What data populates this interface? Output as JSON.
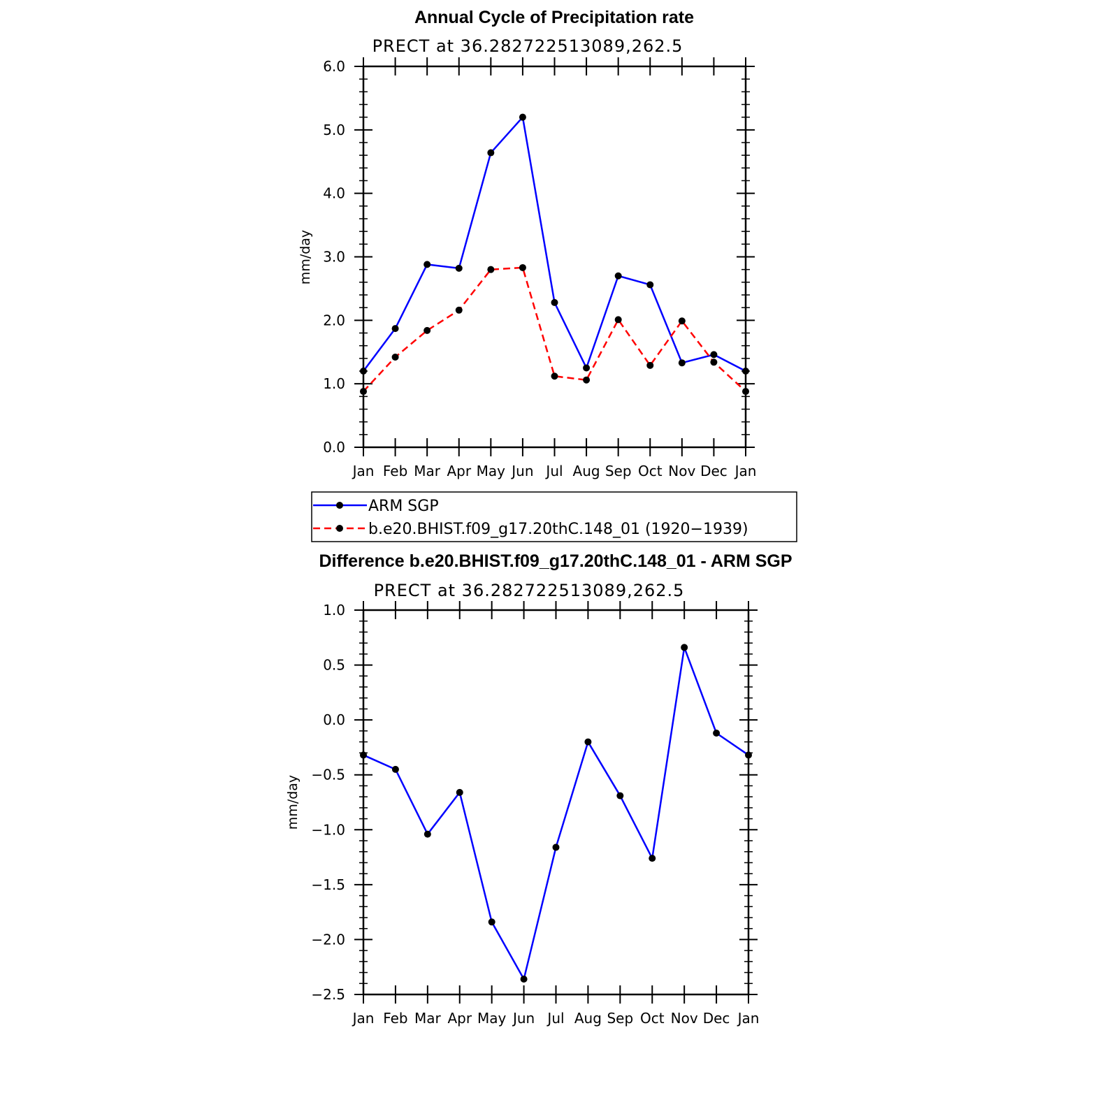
{
  "chart_data": [
    {
      "type": "line",
      "title": "Annual Cycle of Precipitation rate",
      "subtitle": "PRECT at 36.282722513089,262.5",
      "ylabel": "mm/day",
      "ylim": [
        0,
        6
      ],
      "yticks": [
        0,
        1,
        2,
        3,
        4,
        5,
        6
      ],
      "ytick_labels": [
        "0.0",
        "1.0",
        "2.0",
        "3.0",
        "4.0",
        "5.0",
        "6.0"
      ],
      "categories": [
        "Jan",
        "Feb",
        "Mar",
        "Apr",
        "May",
        "Jun",
        "Jul",
        "Aug",
        "Sep",
        "Oct",
        "Nov",
        "Dec",
        "Jan"
      ],
      "series": [
        {
          "name": "ARM SGP",
          "color": "#0000ff",
          "dash": "solid",
          "values": [
            1.2,
            1.87,
            2.88,
            2.82,
            4.64,
            5.2,
            2.28,
            1.25,
            2.7,
            2.56,
            1.33,
            1.46,
            1.2
          ]
        },
        {
          "name": "b.e20.BHIST.f09_g17.20thC.148_01 (1920−1939)",
          "color": "#ff0000",
          "dash": "dashed",
          "values": [
            0.88,
            1.42,
            1.84,
            2.16,
            2.8,
            2.83,
            1.12,
            1.06,
            2.01,
            1.29,
            1.99,
            1.34,
            0.88
          ]
        }
      ],
      "legend": "below"
    },
    {
      "type": "line",
      "title": "Difference b.e20.BHIST.f09_g17.20thC.148_01 - ARM SGP",
      "subtitle": "PRECT at 36.282722513089,262.5",
      "ylabel": "mm/day",
      "ylim": [
        -2.5,
        1.0
      ],
      "yticks": [
        -2.5,
        -2.0,
        -1.5,
        -1.0,
        -0.5,
        0.0,
        0.5,
        1.0
      ],
      "ytick_labels": [
        "−2.5",
        "−2.0",
        "−1.5",
        "−1.0",
        "−0.5",
        "0.0",
        "0.5",
        "1.0"
      ],
      "categories": [
        "Jan",
        "Feb",
        "Mar",
        "Apr",
        "May",
        "Jun",
        "Jul",
        "Aug",
        "Sep",
        "Oct",
        "Nov",
        "Dec",
        "Jan"
      ],
      "series": [
        {
          "name": "Difference",
          "color": "#0000ff",
          "dash": "solid",
          "values": [
            -0.32,
            -0.45,
            -1.04,
            -0.66,
            -1.84,
            -2.36,
            -1.16,
            -0.2,
            -0.69,
            -1.26,
            0.66,
            -0.12,
            -0.32
          ]
        }
      ]
    }
  ]
}
